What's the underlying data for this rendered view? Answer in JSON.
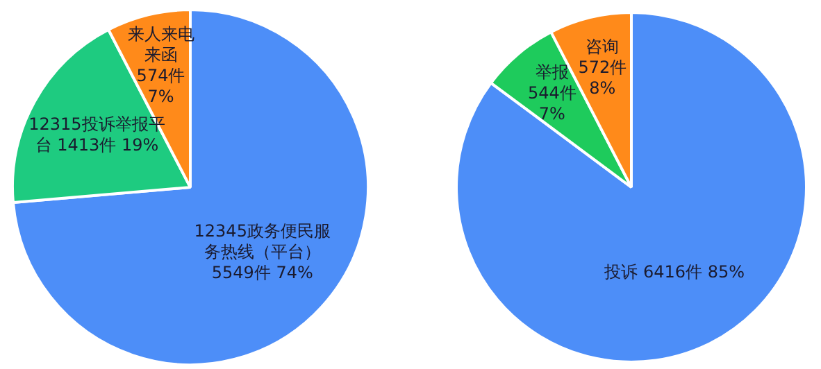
{
  "chart_data": [
    {
      "type": "pie",
      "categories": [
        "12345政务便民服务热线（平台）",
        "12315投诉举报平台",
        "来人来电来函"
      ],
      "values": [
        5549,
        1413,
        574
      ],
      "colors": [
        "#4d8ef8",
        "#1ecb80",
        "#ff8a1a"
      ],
      "value_labels": [
        "5549件 74%",
        "1413件 19%",
        "574件 7%"
      ],
      "legend": false
    },
    {
      "type": "pie",
      "categories": [
        "投诉",
        "举报",
        "咨询"
      ],
      "values": [
        6416,
        544,
        572
      ],
      "colors": [
        "#4d8ef8",
        "#1ecb5c",
        "#ff8a1a"
      ],
      "value_labels": [
        "6416件 85%",
        "544件 7%",
        "572件 8%"
      ],
      "legend": false
    }
  ]
}
